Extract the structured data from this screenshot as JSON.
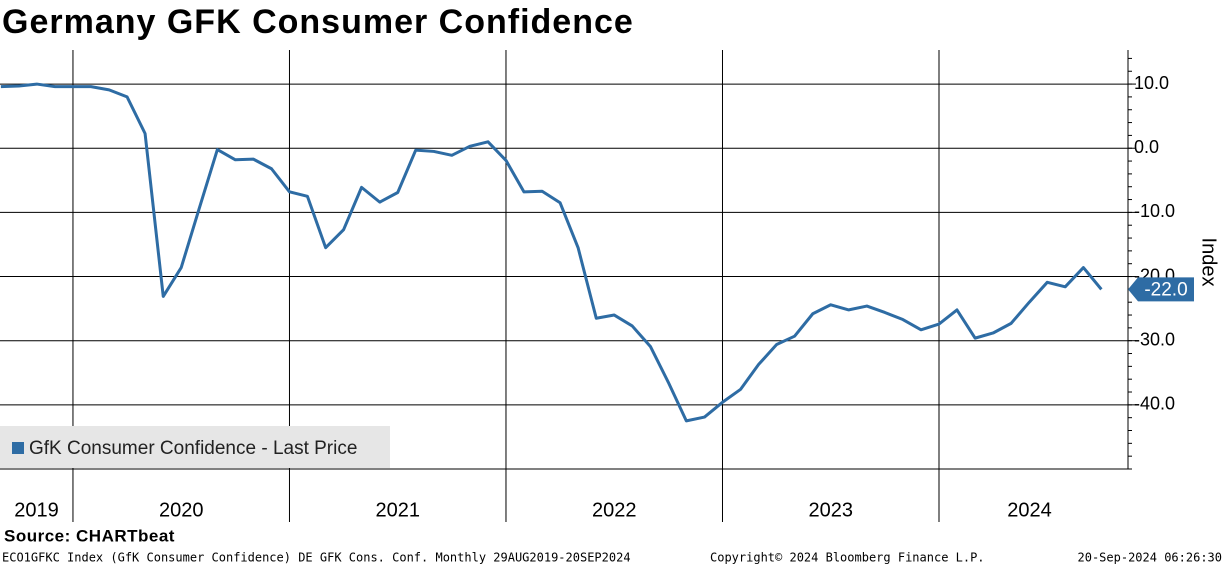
{
  "chart_data": {
    "type": "line",
    "title": "Germany GFK Consumer Confidence",
    "y_axis_label": "Index",
    "source": "Source: CHARTbeat",
    "footer_left": "ECO1GFKC Index (GfK Consumer Confidence) DE GFK Cons. Conf.  Monthly 29AUG2019-20SEP2024",
    "footer_center": "Copyright© 2024 Bloomberg Finance L.P.",
    "footer_right": "20-Sep-2024 06:26:30",
    "x": [
      2019.667,
      2019.75,
      2019.833,
      2019.917,
      2020,
      2020.083,
      2020.167,
      2020.25,
      2020.333,
      2020.417,
      2020.5,
      2020.583,
      2020.667,
      2020.75,
      2020.833,
      2020.917,
      2021,
      2021.083,
      2021.167,
      2021.25,
      2021.333,
      2021.417,
      2021.5,
      2021.583,
      2021.667,
      2021.75,
      2021.833,
      2021.917,
      2022,
      2022.083,
      2022.167,
      2022.25,
      2022.333,
      2022.417,
      2022.5,
      2022.583,
      2022.667,
      2022.75,
      2022.833,
      2022.917,
      2023,
      2023.083,
      2023.167,
      2023.25,
      2023.333,
      2023.417,
      2023.5,
      2023.583,
      2023.667,
      2023.75,
      2023.833,
      2023.917,
      2024,
      2024.083,
      2024.167,
      2024.25,
      2024.333,
      2024.417,
      2024.5,
      2024.583,
      2024.667,
      2024.75
    ],
    "series": [
      {
        "name": "GfK Consumer Confidence - Last Price",
        "color": "#2e6ca4",
        "values": [
          9.6,
          9.7,
          10.0,
          9.6,
          9.6,
          9.6,
          9.1,
          8.0,
          2.3,
          -23.1,
          -18.6,
          -9.4,
          -0.2,
          -1.8,
          -1.7,
          -3.2,
          -6.8,
          -7.5,
          -15.5,
          -12.7,
          -6.1,
          -8.4,
          -6.9,
          -0.3,
          -0.5,
          -1.1,
          0.3,
          1.0,
          -1.9,
          -6.8,
          -6.7,
          -8.5,
          -15.5,
          -26.5,
          -26.0,
          -27.7,
          -30.9,
          -36.5,
          -42.5,
          -41.9,
          -39.6,
          -37.6,
          -33.7,
          -30.6,
          -29.3,
          -25.8,
          -24.4,
          -25.2,
          -24.6,
          -25.6,
          -26.7,
          -28.3,
          -27.4,
          -25.2,
          -29.6,
          -28.8,
          -27.3,
          -24.0,
          -20.9,
          -21.6,
          -18.6,
          -22.0
        ],
        "value_labels": [
          null,
          null,
          null,
          null,
          null,
          null,
          null,
          null,
          null,
          null,
          null,
          null,
          null,
          null,
          null,
          null,
          null,
          null,
          null,
          null,
          null,
          null,
          null,
          null,
          null,
          null,
          null,
          null,
          null,
          null,
          null,
          null,
          null,
          null,
          null,
          null,
          null,
          null,
          null,
          null,
          null,
          null,
          null,
          null,
          null,
          null,
          null,
          null,
          null,
          null,
          null,
          null,
          null,
          null,
          null,
          null,
          null,
          null,
          null,
          null,
          null,
          "-22.0"
        ]
      }
    ],
    "xlim": [
      2019.663,
      2024.836
    ],
    "xticks": [
      2020,
      2021,
      2022,
      2023,
      2024
    ],
    "xlabels": [
      2019,
      2020,
      2021,
      2022,
      2023,
      2024
    ],
    "ylim": [
      -50,
      15
    ],
    "yticks": [
      {
        "value": 10,
        "label": "10.0"
      },
      {
        "value": 0,
        "label": "0.0"
      },
      {
        "value": -10,
        "label": "-10.0"
      },
      {
        "value": -20,
        "label": "-20.0"
      },
      {
        "value": -30,
        "label": "-30.0"
      },
      {
        "value": -40,
        "label": "-40.0"
      }
    ],
    "grid": true,
    "legend": "lower-left"
  }
}
